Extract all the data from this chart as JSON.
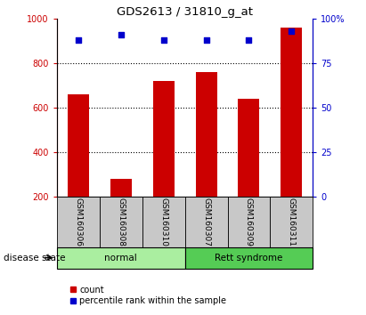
{
  "title": "GDS2613 / 31810_g_at",
  "samples": [
    "GSM160306",
    "GSM160308",
    "GSM160310",
    "GSM160307",
    "GSM160309",
    "GSM160311"
  ],
  "counts": [
    660,
    280,
    720,
    760,
    640,
    960
  ],
  "percentiles": [
    88,
    91,
    88,
    88,
    88,
    93
  ],
  "ylim_left": [
    200,
    1000
  ],
  "ylim_right": [
    0,
    100
  ],
  "yticks_left": [
    200,
    400,
    600,
    800,
    1000
  ],
  "yticks_right": [
    0,
    25,
    50,
    75,
    100
  ],
  "ytick_right_labels": [
    "0",
    "25",
    "50",
    "75",
    "100%"
  ],
  "bar_color": "#cc0000",
  "dot_color": "#0000cc",
  "normal_color": "#aaeea0",
  "rett_color": "#55cc55",
  "label_box_color": "#c8c8c8",
  "bar_width": 0.5,
  "legend_count": "count",
  "legend_pct": "percentile rank within the sample"
}
